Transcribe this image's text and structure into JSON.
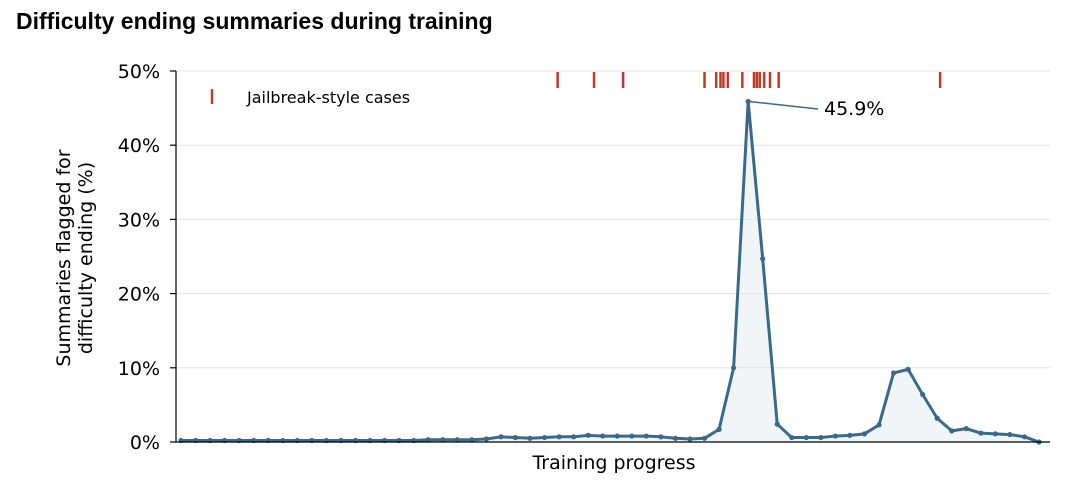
{
  "chart_data": {
    "type": "line",
    "title": "Difficulty ending summaries during training",
    "xlabel": "Training progress",
    "ylabel_lines": [
      "Summaries flagged for",
      "difficulty ending (%)"
    ],
    "ylim": [
      0,
      50
    ],
    "yticks": [
      "0%",
      "10%",
      "20%",
      "30%",
      "40%",
      "50%"
    ],
    "grid": "horizontal",
    "series": [
      {
        "color": "#3a6a8a",
        "x": [
          0,
          1,
          2,
          3,
          4,
          5,
          6,
          7,
          8,
          9,
          10,
          11,
          12,
          13,
          14,
          15,
          16,
          17,
          18,
          19,
          20,
          21,
          22,
          23,
          24,
          25,
          26,
          27,
          28,
          29,
          30,
          31,
          32,
          33,
          34,
          35,
          36,
          37,
          38,
          39,
          40,
          41,
          42,
          43,
          44,
          45,
          46,
          47,
          48,
          49,
          50,
          51,
          52,
          53,
          54,
          55,
          56,
          57,
          58,
          59
        ],
        "values": [
          0.2,
          0.2,
          0.2,
          0.2,
          0.2,
          0.2,
          0.2,
          0.2,
          0.2,
          0.2,
          0.2,
          0.2,
          0.2,
          0.2,
          0.2,
          0.2,
          0.2,
          0.3,
          0.3,
          0.3,
          0.3,
          0.4,
          0.7,
          0.6,
          0.5,
          0.6,
          0.7,
          0.7,
          0.9,
          0.8,
          0.8,
          0.8,
          0.8,
          0.7,
          0.5,
          0.4,
          0.5,
          1.7,
          10.0,
          45.9,
          24.7,
          2.4,
          0.6,
          0.6,
          0.6,
          0.8,
          0.9,
          1.1,
          2.3,
          9.3,
          9.8,
          6.4,
          3.2,
          1.5,
          1.8,
          1.2,
          1.1,
          1.0,
          0.7,
          0.0
        ]
      }
    ],
    "peak_annotation": {
      "x": 39,
      "y": 45.9,
      "label": "45.9%"
    },
    "rug": {
      "label": "Jailbreak-style cases",
      "color": "#c0392b",
      "x": [
        25.9,
        28.4,
        30.4,
        36.0,
        36.8,
        37.1,
        37.3,
        37.6,
        38.6,
        39.4,
        39.6,
        39.8,
        40.1,
        40.5,
        41.1,
        52.2
      ]
    },
    "legend_position": "top-left"
  }
}
